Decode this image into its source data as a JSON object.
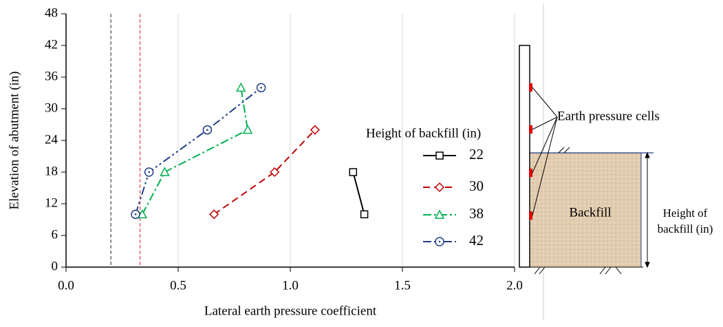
{
  "chart_data": {
    "type": "line",
    "x_label": "Lateral earth pressure coefficient",
    "y_label": "Elevation of abutment (in)",
    "xlim": [
      0,
      2
    ],
    "ylim": [
      0,
      48
    ],
    "xticks": [
      {
        "value": 0,
        "label": "0.0"
      },
      0.5,
      {
        "value": 1,
        "label": "1.0"
      },
      1.5,
      {
        "value": 2,
        "label": "2.0"
      }
    ],
    "yticks": [
      0,
      6,
      12,
      18,
      24,
      30,
      36,
      42,
      48
    ],
    "grid": true,
    "legend_title": "Height of backfill (in)",
    "reference_lines": [
      {
        "value": 0.2,
        "color": "#555555"
      },
      {
        "value": 0.33,
        "color": "#e05050"
      }
    ],
    "series": [
      {
        "name": "22",
        "color": "#000000",
        "marker": "square",
        "dash": "",
        "x": [
          1.28,
          1.33
        ],
        "values": [
          18,
          10
        ]
      },
      {
        "name": "30",
        "color": "#c00000",
        "marker": "diamond",
        "dash": "10 6",
        "x": [
          0.66,
          0.93,
          1.11
        ],
        "values": [
          10,
          18,
          26
        ]
      },
      {
        "name": "38",
        "color": "#00b050",
        "marker": "triangle",
        "dash": "12 4 3 4",
        "x": [
          0.34,
          0.44,
          0.81,
          0.78
        ],
        "values": [
          10,
          18,
          26,
          34
        ]
      },
      {
        "name": "42",
        "color": "#1f3c88",
        "marker": "circle",
        "dash": "12 4 3 4 3 4",
        "x": [
          0.31,
          0.37,
          0.63,
          0.87
        ],
        "values": [
          10,
          18,
          26,
          34
        ]
      }
    ]
  },
  "diagram": {
    "cells_label": "Earth pressure cells",
    "backfill_label": "Backfill",
    "height_label": [
      "Height of",
      "backfill (in)"
    ]
  }
}
